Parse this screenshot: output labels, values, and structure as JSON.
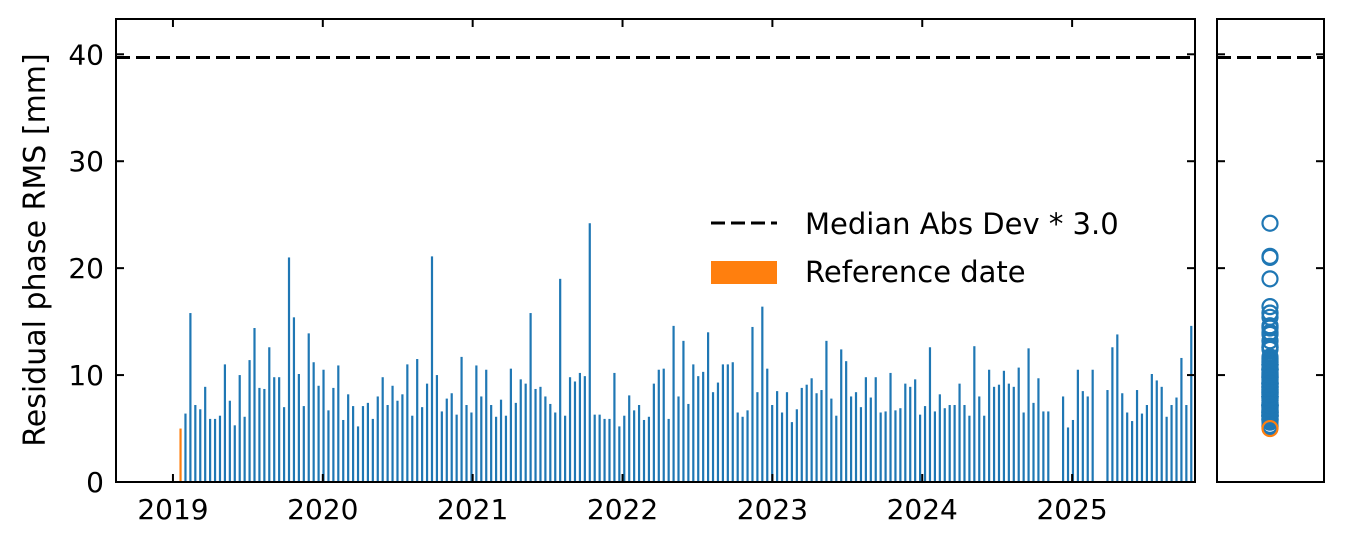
{
  "chart_data": [
    {
      "type": "bar",
      "ylabel": "Residual phase RMS [mm]",
      "xlabel": "",
      "title": "",
      "ylim": [
        0,
        43.3
      ],
      "xlim": [
        2018.62,
        2025.82
      ],
      "xticks": [
        "2019",
        "2020",
        "2021",
        "2022",
        "2023",
        "2024",
        "2025"
      ],
      "yticks": [
        "0",
        "10",
        "20",
        "30",
        "40"
      ],
      "legend": {
        "placement": "center-right",
        "entries": [
          "Median Abs Dev * 3.0",
          "Reference date"
        ]
      },
      "threshold": 39.7,
      "colors": {
        "bars": "#1f77b4",
        "reference": "#ff7f0e",
        "threshold": "#000000"
      },
      "reference": {
        "x": 2019.05,
        "value": 5.0
      },
      "x_start": 2019.05,
      "x_step": 0.0329,
      "values": [
        5.0,
        6.4,
        15.8,
        7.2,
        6.8,
        8.9,
        5.9,
        5.9,
        6.2,
        11.0,
        7.6,
        5.3,
        10.0,
        6.1,
        11.4,
        14.4,
        8.8,
        8.7,
        12.6,
        9.8,
        9.8,
        7.0,
        21.0,
        15.4,
        10.1,
        7.1,
        13.9,
        11.2,
        9.0,
        10.5,
        6.7,
        8.8,
        10.9,
        5.8,
        8.2,
        7.1,
        5.2,
        7.1,
        7.4,
        5.9,
        8.0,
        9.8,
        7.2,
        9.0,
        7.6,
        8.2,
        11.0,
        6.2,
        11.5,
        7.0,
        9.2,
        21.1,
        10.0,
        6.6,
        7.8,
        8.3,
        6.3,
        11.7,
        7.2,
        6.5,
        10.9,
        8.0,
        10.5,
        7.2,
        6.1,
        7.7,
        6.2,
        10.6,
        7.4,
        9.6,
        9.2,
        15.8,
        8.7,
        8.9,
        8.0,
        7.3,
        6.5,
        19.0,
        6.2,
        9.8,
        9.4,
        10.2,
        9.9,
        24.2,
        6.3,
        6.3,
        5.9,
        5.9,
        10.2,
        5.2,
        6.2,
        8.1,
        6.7,
        7.2,
        5.8,
        6.1,
        9.2,
        10.5,
        10.6,
        5.9,
        14.6,
        8.0,
        13.2,
        7.3,
        11.0,
        9.9,
        10.3,
        14.0,
        8.4,
        9.3,
        11.0,
        11.0,
        11.2,
        6.5,
        6.1,
        6.7,
        14.5,
        8.4,
        16.4,
        10.6,
        7.2,
        8.5,
        6.5,
        8.4,
        5.6,
        6.8,
        8.8,
        9.1,
        9.7,
        8.3,
        8.6,
        13.2,
        7.8,
        6.2,
        12.4,
        11.3,
        8.0,
        8.4,
        7.0,
        9.8,
        7.9,
        9.8,
        6.5,
        6.6,
        10.2,
        6.7,
        6.9,
        9.2,
        8.9,
        9.6,
        6.3,
        7.1,
        12.6,
        6.6,
        8.2,
        6.9,
        7.2,
        7.2,
        9.2,
        7.2,
        6.2,
        12.7,
        8.0,
        6.2,
        10.5,
        8.9,
        9.1,
        10.4,
        9.2,
        8.9,
        10.7,
        6.5,
        12.5,
        7.4,
        9.7,
        6.6,
        6.6,
        8.0,
        5.1,
        5.8,
        10.5,
        8.5,
        8.0,
        10.5,
        8.6,
        12.6,
        13.8,
        8.3,
        6.5,
        5.7,
        8.6,
        6.4,
        7.2,
        10.1,
        9.5,
        8.9,
        6.1,
        7.2,
        7.9,
        11.6,
        7.2,
        14.6
      ],
      "gaps_after_index": [
        176,
        183
      ]
    },
    {
      "type": "scatter",
      "ylim": [
        0,
        43.3
      ],
      "threshold": 39.7,
      "marker": "open-circle",
      "colors": {
        "points": "#1f77b4",
        "reference": "#ff7f0e"
      },
      "note_values_source": "same values as the bar series (side distribution panel)",
      "reference_value": 5.0
    }
  ]
}
